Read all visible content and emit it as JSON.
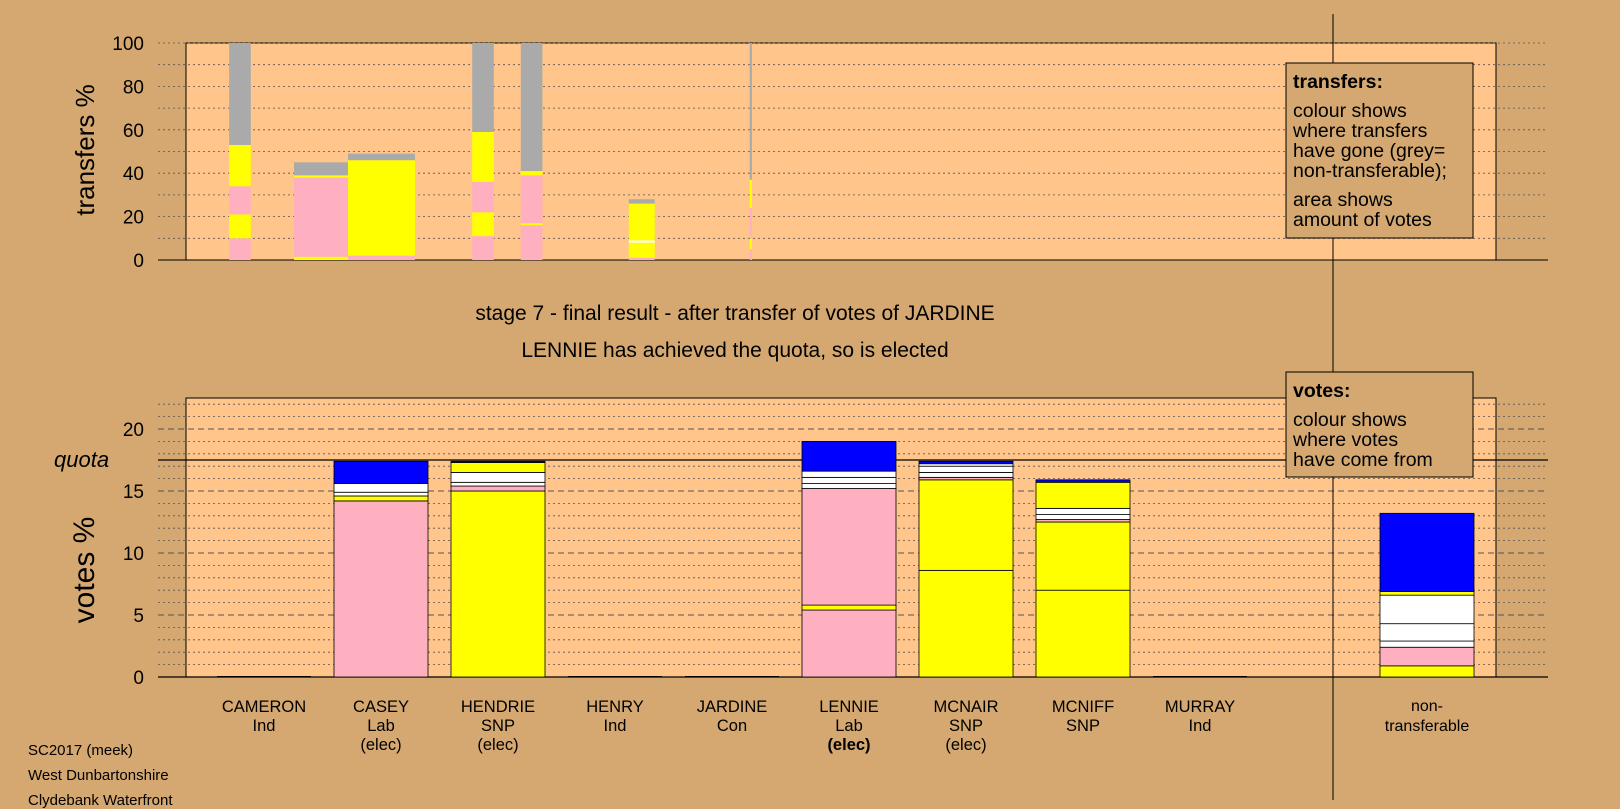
{
  "colors": {
    "background": "#d4a870",
    "plot_bg": "#ffc58a",
    "lab": "#ffb0c0",
    "snp": "#ffff00",
    "con": "#0000ff",
    "ind": "#ffffff",
    "non_transferable": "#aaaaaa"
  },
  "chart_data": [
    {
      "type": "bar",
      "id": "transfers",
      "ylabel": "transfers %",
      "ylim": [
        0,
        100
      ],
      "yticks": [
        0,
        20,
        40,
        60,
        80,
        100
      ],
      "grid": "dotted every 10",
      "legend": {
        "placement": "top-right",
        "title": "transfers:",
        "lines1": [
          "colour shows",
          "where transfers",
          "have gone (grey=",
          "non-transferable);"
        ],
        "lines2": [
          "area shows",
          "amount of votes"
        ]
      },
      "columns": [
        {
          "x0": 0.4,
          "x1": 0.6,
          "segments": [
            [
              "lab",
              0,
              10
            ],
            [
              "snp",
              10,
              21
            ],
            [
              "lab",
              21,
              34
            ],
            [
              "snp",
              34,
              53
            ],
            [
              "non_transferable",
              53,
              100
            ]
          ]
        },
        {
          "x0": 1.0,
          "x1": 1.5,
          "segments": [
            [
              "snp",
              0,
              1.5
            ],
            [
              "lab",
              1.5,
              38
            ],
            [
              "snp",
              38,
              39
            ],
            [
              "non_transferable",
              39,
              45
            ]
          ]
        },
        {
          "x0": 1.5,
          "x1": 2.12,
          "segments": [
            [
              "lab",
              0,
              2
            ],
            [
              "snp",
              2,
              46
            ],
            [
              "non_transferable",
              46,
              49
            ]
          ]
        },
        {
          "x0": 2.65,
          "x1": 2.85,
          "segments": [
            [
              "lab",
              0,
              11
            ],
            [
              "snp",
              11,
              22
            ],
            [
              "lab",
              22,
              36
            ],
            [
              "snp",
              36,
              59
            ],
            [
              "non_transferable",
              59,
              100
            ]
          ]
        },
        {
          "x0": 3.1,
          "x1": 3.3,
          "segments": [
            [
              "lab",
              0,
              16
            ],
            [
              "snp",
              16,
              17
            ],
            [
              "lab",
              17,
              39
            ],
            [
              "snp",
              39,
              41
            ],
            [
              "non_transferable",
              41,
              100
            ]
          ]
        },
        {
          "x0": 4.1,
          "x1": 4.34,
          "segments": [
            [
              "lab",
              0,
              1
            ],
            [
              "snp",
              1,
              8
            ],
            [
              "ind",
              8,
              9
            ],
            [
              "snp",
              9,
              26
            ],
            [
              "non_transferable",
              26,
              28
            ]
          ]
        },
        {
          "x0": 5.22,
          "x1": 5.24,
          "segments": [
            [
              "lab",
              0,
              5
            ],
            [
              "snp",
              5,
              10
            ],
            [
              "lab",
              10,
              24
            ],
            [
              "snp",
              24,
              37
            ],
            [
              "non_transferable",
              37,
              100
            ]
          ]
        }
      ]
    },
    {
      "type": "bar",
      "id": "votes",
      "ylabel": "votes %",
      "ylim": [
        0,
        22.5
      ],
      "yticks": [
        0,
        5,
        10,
        15,
        20
      ],
      "grid": "dashed every 5, dotted every 1",
      "quota": 17.5,
      "quota_label": "quota",
      "legend": {
        "placement": "top-right",
        "title": "votes:",
        "lines": [
          "colour shows",
          "where votes",
          "have come from"
        ]
      },
      "candidates": [
        {
          "name": "CAMERON",
          "party": "Ind",
          "status": "",
          "segments": []
        },
        {
          "name": "CASEY",
          "party": "Lab",
          "status": "(elec)",
          "segments": [
            [
              "lab",
              0,
              14.2
            ],
            [
              "snp",
              14.2,
              14.6
            ],
            [
              "ind",
              14.6,
              14.9
            ],
            [
              "ind",
              14.9,
              15.6
            ],
            [
              "con",
              15.6,
              17.4
            ]
          ]
        },
        {
          "name": "HENDRIE",
          "party": "SNP",
          "status": "(elec)",
          "segments": [
            [
              "snp",
              0,
              15.0
            ],
            [
              "lab",
              15.0,
              15.4
            ],
            [
              "ind",
              15.4,
              15.7
            ],
            [
              "ind",
              15.7,
              16.5
            ],
            [
              "snp",
              16.5,
              17.3
            ],
            [
              "con",
              17.3,
              17.4
            ]
          ]
        },
        {
          "name": "HENRY",
          "party": "Ind",
          "status": "",
          "segments": []
        },
        {
          "name": "JARDINE",
          "party": "Con",
          "status": "",
          "segments": []
        },
        {
          "name": "LENNIE",
          "party": "Lab",
          "status": "(elec)",
          "bold_status": true,
          "segments": [
            [
              "lab",
              0,
              5.4
            ],
            [
              "snp",
              5.4,
              5.8
            ],
            [
              "lab",
              5.8,
              15.2
            ],
            [
              "ind",
              15.2,
              15.6
            ],
            [
              "ind",
              15.6,
              16.1
            ],
            [
              "ind",
              16.1,
              16.6
            ],
            [
              "con",
              16.6,
              19.0
            ]
          ]
        },
        {
          "name": "MCNAIR",
          "party": "SNP",
          "status": "(elec)",
          "segments": [
            [
              "snp",
              0,
              8.6
            ],
            [
              "snp",
              8.6,
              15.9
            ],
            [
              "lab",
              15.9,
              16.1
            ],
            [
              "ind",
              16.1,
              16.5
            ],
            [
              "ind",
              16.5,
              17.0
            ],
            [
              "ind",
              17.0,
              17.2
            ],
            [
              "con",
              17.2,
              17.4
            ]
          ]
        },
        {
          "name": "MCNIFF",
          "party": "SNP",
          "status": "",
          "segments": [
            [
              "snp",
              0,
              7.0
            ],
            [
              "snp",
              7.0,
              12.5
            ],
            [
              "lab",
              12.5,
              12.7
            ],
            [
              "ind",
              12.7,
              13.1
            ],
            [
              "ind",
              13.1,
              13.6
            ],
            [
              "snp",
              13.6,
              15.7
            ],
            [
              "con",
              15.7,
              15.9
            ]
          ]
        },
        {
          "name": "MURRAY",
          "party": "Ind",
          "status": "",
          "segments": []
        }
      ],
      "non_transferable": {
        "label_lines": [
          "non-",
          "transferable"
        ],
        "segments": [
          [
            "snp",
            0,
            0.9
          ],
          [
            "lab",
            0.9,
            2.4
          ],
          [
            "ind",
            2.4,
            2.9
          ],
          [
            "ind",
            2.9,
            4.3
          ],
          [
            "ind",
            4.3,
            6.6
          ],
          [
            "snp",
            6.6,
            6.9
          ],
          [
            "con",
            6.9,
            13.2
          ]
        ]
      }
    }
  ],
  "titles": {
    "stage": "stage 7 - final result - after transfer of votes of JARDINE",
    "outcome": "LENNIE has achieved the quota, so is elected"
  },
  "footer": [
    "SC2017 (meek)",
    "West Dunbartonshire",
    "Clydebank Waterfront"
  ]
}
